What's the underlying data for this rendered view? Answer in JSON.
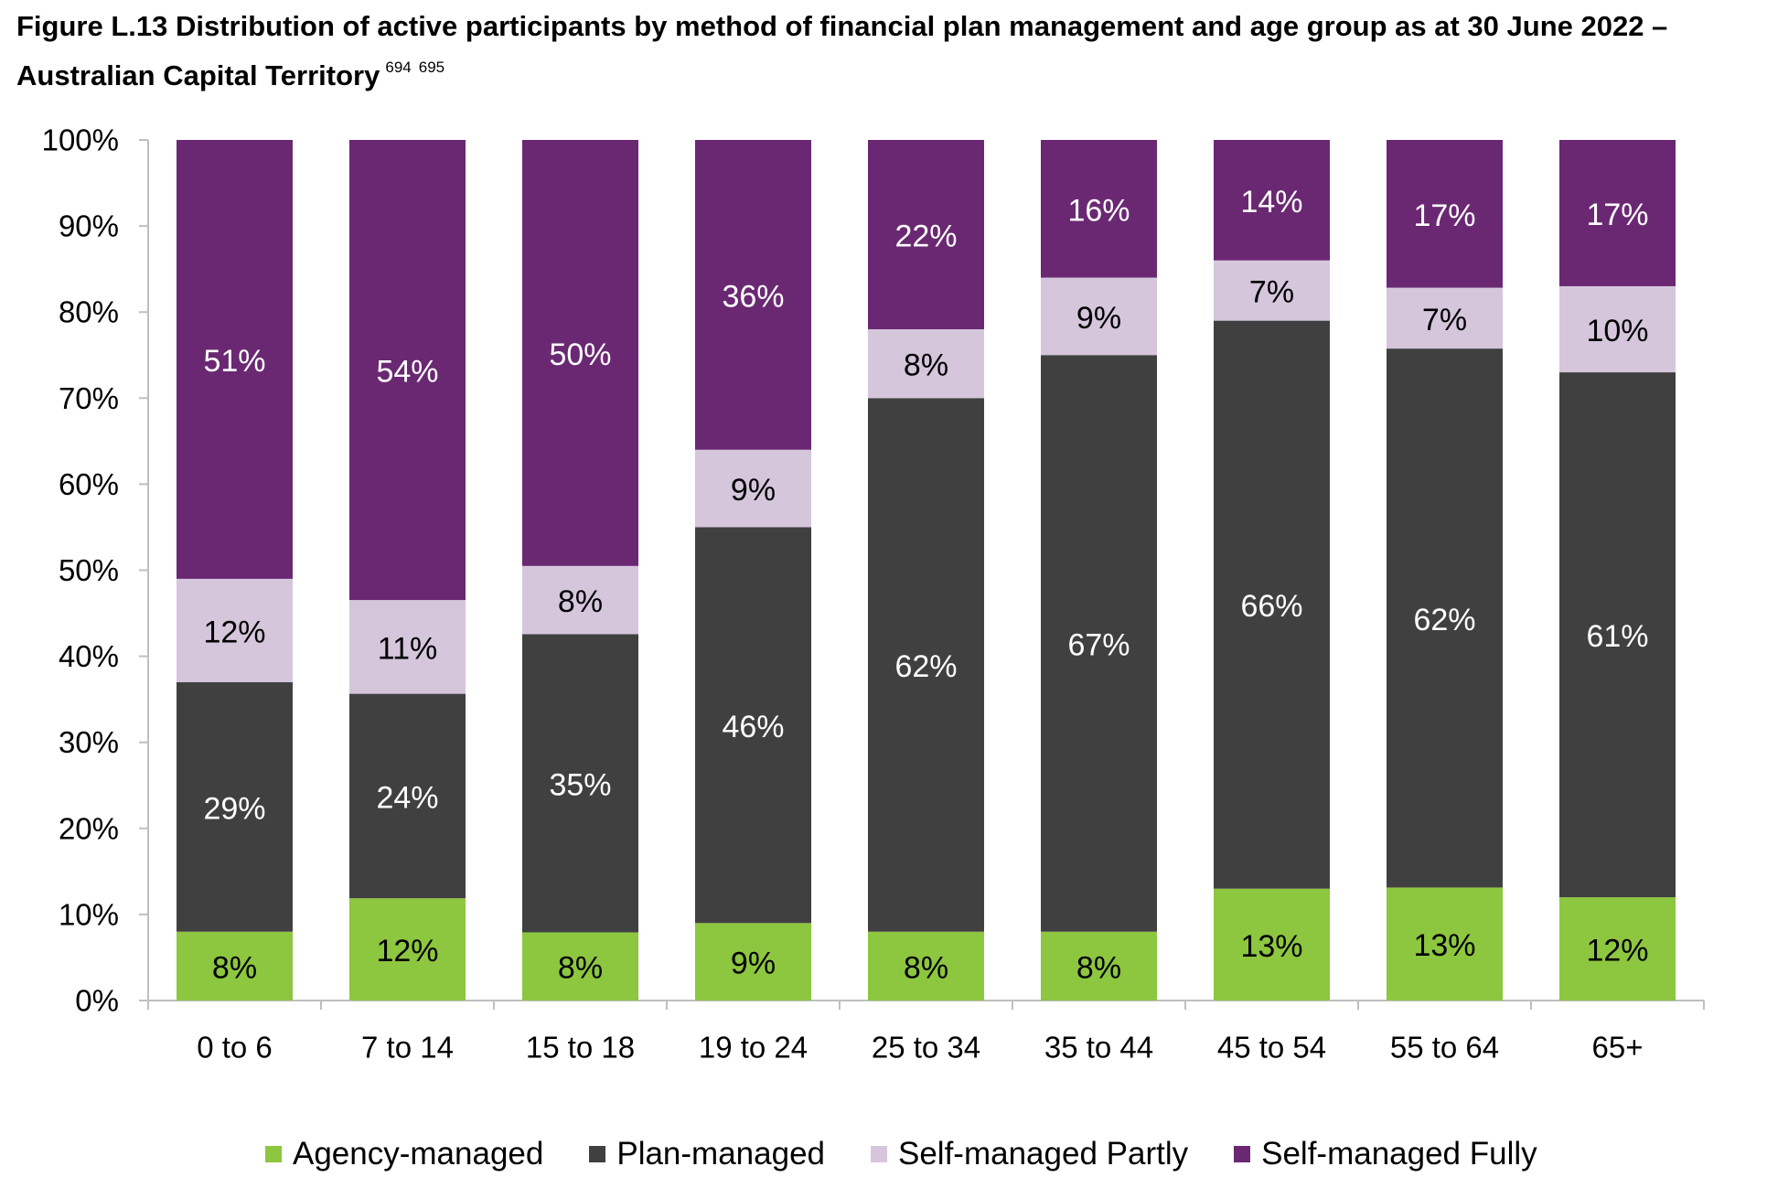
{
  "title": {
    "text_line1": "Figure L.13 Distribution of active participants by method of financial plan management and age group as at 30 June 2022 –",
    "text_line2": "Australian Capital Territory",
    "footnotes": [
      "694",
      "695"
    ]
  },
  "chart_data": {
    "type": "bar",
    "stacked": true,
    "categories": [
      "0 to 6",
      "7 to 14",
      "15 to 18",
      "19 to 24",
      "25 to 34",
      "35 to 44",
      "45 to 54",
      "55 to 64",
      "65+"
    ],
    "series": [
      {
        "name": "Agency-managed",
        "color": "#8dc63f",
        "label_color": "#000000",
        "values": [
          8,
          12,
          8,
          9,
          8,
          8,
          13,
          13,
          12
        ],
        "labels": [
          "8%",
          "12%",
          "8%",
          "9%",
          "8%",
          "8%",
          "13%",
          "13%",
          "12%"
        ]
      },
      {
        "name": "Plan-managed",
        "color": "#404041",
        "label_color": "#ffffff",
        "values": [
          29,
          24,
          35,
          46,
          62,
          67,
          66,
          62,
          61
        ],
        "labels": [
          "29%",
          "24%",
          "35%",
          "46%",
          "62%",
          "67%",
          "66%",
          "62%",
          "61%"
        ]
      },
      {
        "name": "Self-managed Partly",
        "color": "#d5c6dc",
        "label_color": "#000000",
        "values": [
          12,
          11,
          8,
          9,
          8,
          9,
          7,
          7,
          10
        ],
        "labels": [
          "12%",
          "11%",
          "8%",
          "9%",
          "8%",
          "9%",
          "7%",
          "7%",
          "10%"
        ]
      },
      {
        "name": "Self-managed Fully",
        "color": "#6a2873",
        "label_color": "#ffffff",
        "values": [
          51,
          54,
          50,
          36,
          22,
          16,
          14,
          17,
          17
        ],
        "labels": [
          "51%",
          "54%",
          "50%",
          "36%",
          "22%",
          "16%",
          "14%",
          "17%",
          "17%"
        ]
      }
    ],
    "ylim": [
      0,
      100
    ],
    "yticks": [
      0,
      10,
      20,
      30,
      40,
      50,
      60,
      70,
      80,
      90,
      100
    ],
    "ytick_labels": [
      "0%",
      "10%",
      "20%",
      "30%",
      "40%",
      "50%",
      "60%",
      "70%",
      "80%",
      "90%",
      "100%"
    ],
    "xlabel": "",
    "ylabel": "",
    "grid": false,
    "legend_position": "bottom"
  }
}
